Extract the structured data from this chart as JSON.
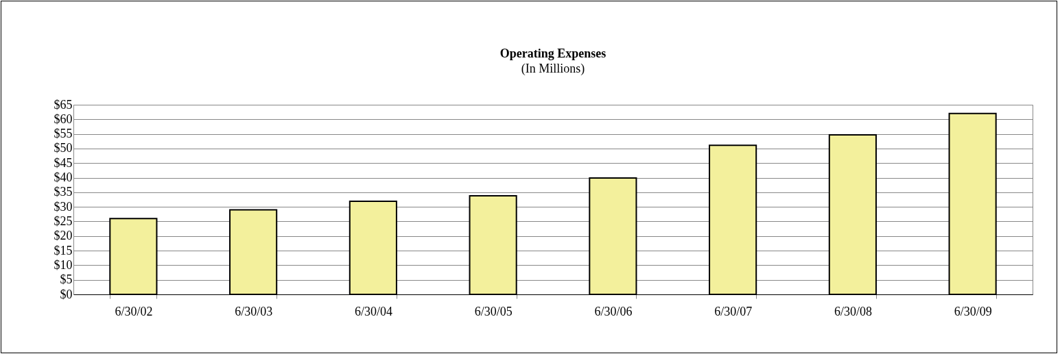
{
  "chart_data": {
    "type": "bar",
    "title": "Operating Expenses",
    "subtitle": "(In Millions)",
    "categories": [
      "6/30/02",
      "6/30/03",
      "6/30/04",
      "6/30/05",
      "6/30/06",
      "6/30/07",
      "6/30/08",
      "6/30/09"
    ],
    "values": [
      26,
      29,
      31.9,
      33.8,
      39.9,
      51.1,
      54.7,
      62
    ],
    "color": "#f3f09c",
    "ylim": [
      0,
      65
    ],
    "yticks": [
      {
        "value": 0,
        "label": "$0"
      },
      {
        "value": 5,
        "label": "$5"
      },
      {
        "value": 10,
        "label": "$10"
      },
      {
        "value": 15,
        "label": "$15"
      },
      {
        "value": 20,
        "label": "$20"
      },
      {
        "value": 25,
        "label": "$25"
      },
      {
        "value": 30,
        "label": "$30"
      },
      {
        "value": 35,
        "label": "$35"
      },
      {
        "value": 40,
        "label": "$40"
      },
      {
        "value": 45,
        "label": "$45"
      },
      {
        "value": 50,
        "label": "$50"
      },
      {
        "value": 55,
        "label": "$55"
      },
      {
        "value": 60,
        "label": "$60"
      },
      {
        "value": 65,
        "label": "$65"
      }
    ],
    "grid": "y"
  }
}
